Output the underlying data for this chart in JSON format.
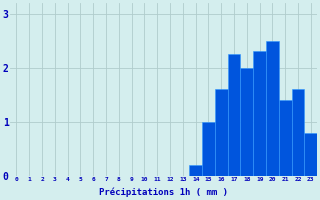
{
  "hours": [
    0,
    1,
    2,
    3,
    4,
    5,
    6,
    7,
    8,
    9,
    10,
    11,
    12,
    13,
    14,
    15,
    16,
    17,
    18,
    19,
    20,
    21,
    22,
    23
  ],
  "values": [
    0,
    0,
    0,
    0,
    0,
    0,
    0,
    0,
    0,
    0,
    0,
    0,
    0,
    0,
    0.2,
    1.0,
    1.6,
    2.25,
    2.0,
    2.3,
    2.5,
    1.4,
    1.6,
    0.8
  ],
  "bar_color": "#0055dd",
  "bar_edge_color": "#3399ff",
  "background_color": "#d4eeee",
  "grid_color": "#b0cccc",
  "xlabel": "Précipitations 1h ( mm )",
  "xlabel_color": "#0000bb",
  "tick_color": "#0000bb",
  "ylim": [
    0,
    3.2
  ],
  "yticks": [
    0,
    1,
    2,
    3
  ],
  "xlim": [
    -0.5,
    23.5
  ]
}
